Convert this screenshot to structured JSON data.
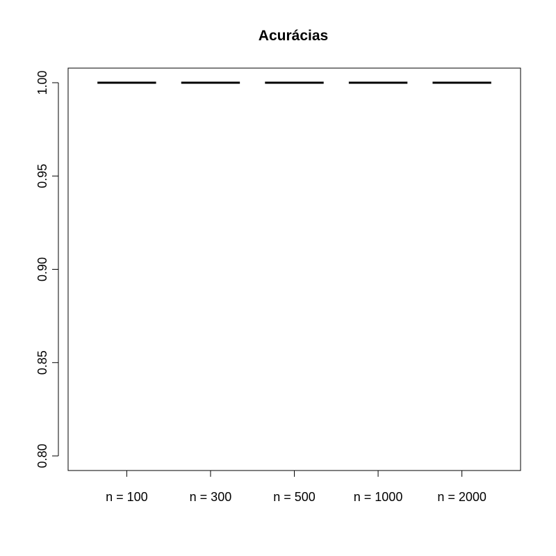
{
  "chart_data": {
    "type": "box",
    "title": "Acurácias",
    "xlabel": "",
    "ylabel": "",
    "categories": [
      "n = 100",
      "n = 300",
      "n = 500",
      "n = 1000",
      "n = 2000"
    ],
    "values": [
      1.0,
      1.0,
      1.0,
      1.0,
      1.0
    ],
    "ylim": [
      0.79,
      1.0
    ],
    "y_ticks": [
      0.8,
      0.85,
      0.9,
      0.95,
      1.0
    ],
    "y_tick_labels": [
      "0.80",
      "0.85",
      "0.90",
      "0.95",
      "1.00"
    ],
    "grid": false,
    "legend": "none",
    "colors": {
      "line": "#000000",
      "background": "#ffffff"
    }
  }
}
